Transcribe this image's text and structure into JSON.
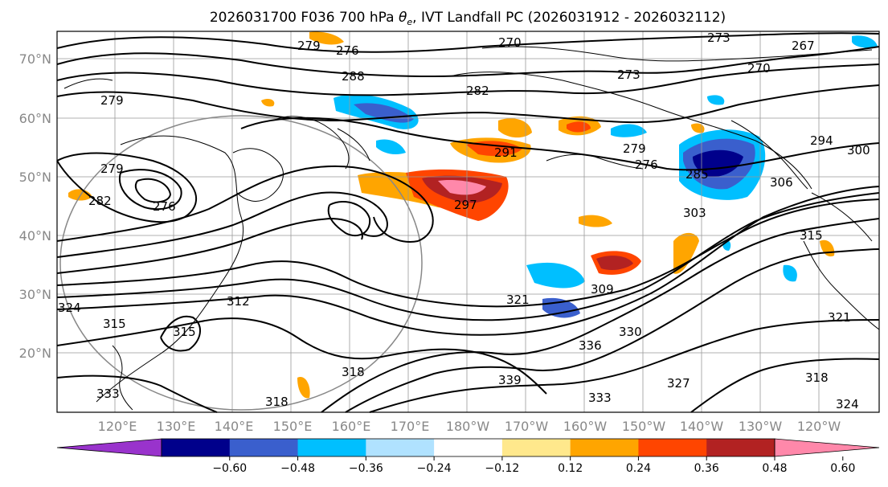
{
  "title_main": "2026031700 F036 700 hPa ",
  "title_symbol": "θ",
  "title_sub": "e",
  "title_rest": ", IVT Landfall PC (2026031912 - 2026032112)",
  "lat_labels": [
    "70°N",
    "60°N",
    "50°N",
    "40°N",
    "30°N",
    "20°N"
  ],
  "lon_labels": [
    "120°E",
    "130°E",
    "140°E",
    "150°E",
    "160°E",
    "170°E",
    "180°W",
    "170°W",
    "160°W",
    "150°W",
    "140°W",
    "130°W",
    "120°W"
  ],
  "colorbar": {
    "ticks": [
      "−0.60",
      "−0.48",
      "−0.36",
      "−0.24",
      "−0.12",
      "0.12",
      "0.24",
      "0.36",
      "0.48",
      "0.60"
    ],
    "colors": [
      "#9933cc",
      "#00008b",
      "#3a5fcd",
      "#00bfff",
      "#b0e2ff",
      "#ffffff",
      "#ffe88c",
      "#ffa500",
      "#ff4500",
      "#b22222",
      "#ff88aa"
    ]
  },
  "contour_labels": [
    "270",
    "273",
    "279",
    "276",
    "279",
    "288",
    "282",
    "267",
    "270",
    "273",
    "279",
    "276",
    "291",
    "297",
    "294",
    "300",
    "285",
    "303",
    "306",
    "279",
    "282",
    "276",
    "315",
    "309",
    "321",
    "324",
    "312",
    "315",
    "318",
    "339",
    "336",
    "330",
    "333",
    "327",
    "318",
    "321",
    "324",
    "315",
    "318",
    "333"
  ]
}
